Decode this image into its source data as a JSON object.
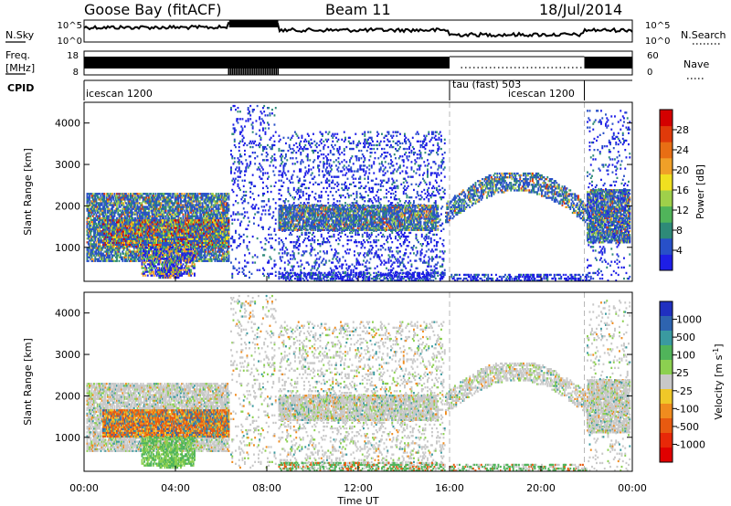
{
  "header": {
    "station": "Goose Bay (fitACF)",
    "beam": "Beam 11",
    "date": "18/Jul/2014"
  },
  "top_panels": {
    "nsky_label": "N.Sky",
    "nsky_ticks": [
      "10^5",
      "10^0"
    ],
    "nsearch_label": "N.Search",
    "nsearch_ticks": [
      "10^5",
      "10^0"
    ],
    "freq_label_line1": "Freq.",
    "freq_label_line2": "[MHz]",
    "freq_ticks": [
      "18",
      "8"
    ],
    "nave_label": "Nave",
    "nave_ticks": [
      "60",
      "0"
    ],
    "cpid_label": "CPID",
    "cpid_segments": [
      {
        "name": "icescan 1200",
        "start_hr": 0,
        "end_hr": 16
      },
      {
        "name": "tau (fast) 503",
        "start_hr": 16,
        "end_hr": 24
      },
      {
        "name": "icescan 1200",
        "start_hr": 18.6,
        "end_hr": 21.9
      }
    ]
  },
  "chart_data": [
    {
      "type": "heatmap",
      "title": "",
      "ylabel": "Slant Range [km]",
      "xlim": [
        0,
        24
      ],
      "ylim": [
        180,
        4500
      ],
      "yticks": [
        1000,
        2000,
        3000,
        4000
      ],
      "colorbar": {
        "label": "Power [dB]",
        "ticks": [
          "4",
          "8",
          "12",
          "16",
          "20",
          "24",
          "28"
        ],
        "colors": [
          "#1e1ee6",
          "#2850c8",
          "#2e8a78",
          "#50b45a",
          "#9fd04a",
          "#f0e020",
          "#f0a028",
          "#e86e14",
          "#e03a0a",
          "#d40000"
        ]
      },
      "dashed_lines_hr": [
        16,
        21.9
      ]
    },
    {
      "type": "heatmap",
      "title": "",
      "ylabel": "Slant Range [km]",
      "xlabel": "Time UT",
      "xlim": [
        0,
        24
      ],
      "ylim": [
        180,
        4500
      ],
      "yticks": [
        1000,
        2000,
        3000,
        4000
      ],
      "xticks": [
        "00:00",
        "04:00",
        "08:00",
        "12:00",
        "16:00",
        "20:00",
        "00:00"
      ],
      "colorbar": {
        "label": "Velocity [m s^-1]",
        "label_main": "Velocity [m s",
        "label_sup": "-1",
        "label_end": "]",
        "ticks": [
          "1000",
          "500",
          "100",
          "25",
          "-25",
          "-100",
          "-500",
          "-1000"
        ],
        "colors": [
          "#2030c0",
          "#2e64b0",
          "#3a9aa0",
          "#50b45a",
          "#8cd050",
          "#c8c8c8",
          "#f0c828",
          "#f08c1e",
          "#e85a10",
          "#e82808",
          "#e00000"
        ]
      },
      "dashed_lines_hr": [
        16,
        21.9
      ]
    }
  ]
}
